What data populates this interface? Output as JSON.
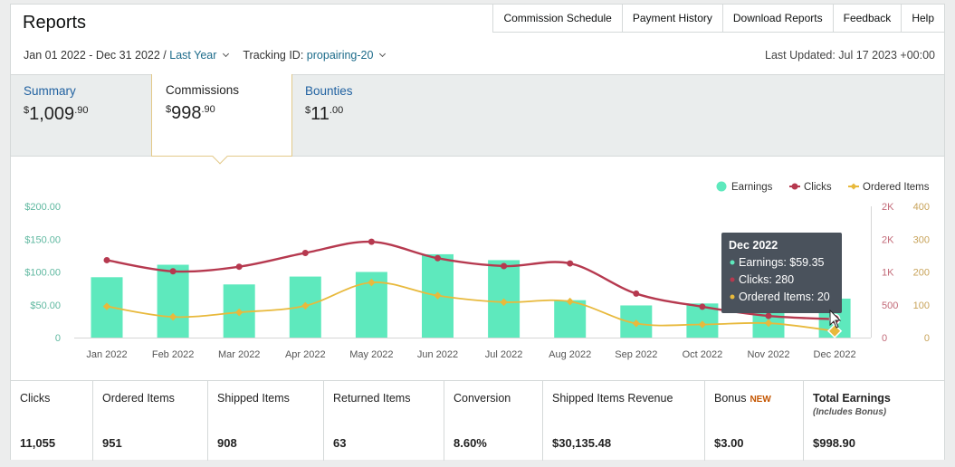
{
  "header": {
    "title": "Reports",
    "links": [
      "Commission Schedule",
      "Payment History",
      "Download Reports",
      "Feedback",
      "Help"
    ]
  },
  "filters": {
    "date_range": "Jan 01 2022 - Dec 31 2022 /",
    "period": "Last Year",
    "tracking_label": "Tracking ID:",
    "tracking_id": "propairing-20",
    "last_updated": "Last Updated: Jul 17 2023 +00:00"
  },
  "tabs": [
    {
      "label": "Summary",
      "currency": "$",
      "whole": "1,009",
      "cents": ".90"
    },
    {
      "label": "Commissions",
      "currency": "$",
      "whole": "998",
      "cents": ".90"
    },
    {
      "label": "Bounties",
      "currency": "$",
      "whole": "11",
      "cents": ".00"
    }
  ],
  "chart_data": {
    "type": "bar",
    "categories": [
      "Jan 2022",
      "Feb 2022",
      "Mar 2022",
      "Apr 2022",
      "May 2022",
      "Jun 2022",
      "Jul 2022",
      "Aug 2022",
      "Sep 2022",
      "Oct 2022",
      "Nov 2022",
      "Dec 2022"
    ],
    "left_axis": {
      "ticks": [
        "$200.00",
        "$150.00",
        "$100.00",
        "$50.00",
        "0"
      ],
      "ylim": [
        0,
        200
      ]
    },
    "clicks_axis": {
      "ticks": [
        "2K",
        "2K",
        "1K",
        "500",
        "0"
      ],
      "ylim": [
        0,
        2000
      ]
    },
    "items_axis": {
      "ticks": [
        "400",
        "300",
        "200",
        "100",
        "0"
      ],
      "ylim": [
        0,
        400
      ]
    },
    "series": [
      {
        "name": "Earnings",
        "type": "bar",
        "axis": "left",
        "color": "#5ee9bd",
        "values": [
          92,
          111,
          81,
          93,
          100,
          127,
          118,
          57,
          49,
          52,
          57,
          59.35
        ]
      },
      {
        "name": "Clicks",
        "type": "line",
        "axis": "clicks",
        "color": "#b6394f",
        "values": [
          1180,
          1010,
          1080,
          1290,
          1460,
          1210,
          1090,
          1130,
          670,
          470,
          330,
          280
        ]
      },
      {
        "name": "Ordered Items",
        "type": "line",
        "axis": "items",
        "color": "#e8b93c",
        "values": [
          95,
          63,
          77,
          97,
          168,
          128,
          108,
          110,
          43,
          40,
          44,
          20
        ]
      }
    ],
    "legend": [
      "Earnings",
      "Clicks",
      "Ordered Items"
    ],
    "legend_position": "top-right",
    "grid": false,
    "tooltip": {
      "title": "Dec 2022",
      "lines": [
        "Earnings: $59.35",
        "Clicks: 280",
        "Ordered Items: 20"
      ]
    }
  },
  "stats": [
    {
      "label": "Clicks",
      "value": "11,055"
    },
    {
      "label": "Ordered Items",
      "value": "951"
    },
    {
      "label": "Shipped Items",
      "value": "908"
    },
    {
      "label": "Returned Items",
      "value": "63"
    },
    {
      "label": "Conversion",
      "value": "8.60%"
    },
    {
      "label": "Shipped Items Revenue",
      "value": "$30,135.48"
    },
    {
      "label": "Bonus",
      "badge": "NEW",
      "value": "$3.00"
    },
    {
      "label": "Total Earnings",
      "sub": "(Includes Bonus)",
      "value": "$998.90"
    }
  ]
}
